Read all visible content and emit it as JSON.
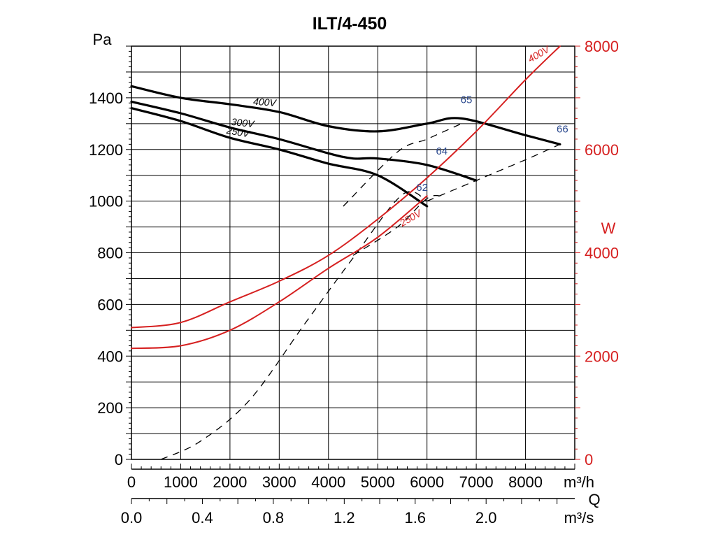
{
  "chart_data": {
    "type": "line",
    "title": "ILT/4-450",
    "y_unit_left": "Pa",
    "y_unit_right": "W",
    "x_unit_primary": "m³/h",
    "x_unit_secondary": "m³/s",
    "x_secondary_name": "Q",
    "xlim": [
      0,
      9000
    ],
    "ylim_left": [
      0,
      1600
    ],
    "ylim_right": [
      0,
      8000
    ],
    "x_ticks": [
      "0",
      "1000",
      "2000",
      "3000",
      "4000",
      "5000",
      "6000",
      "7000",
      "8000"
    ],
    "x_ticks_secondary": [
      "0.0",
      "0.4",
      "0.8",
      "1.2",
      "1.6",
      "2.0"
    ],
    "y_ticks_left": [
      "0",
      "200",
      "400",
      "600",
      "800",
      "1000",
      "1200",
      "1400"
    ],
    "y_ticks_right": [
      "0",
      "2000",
      "4000",
      "6000",
      "8000"
    ],
    "grid": true,
    "pressure_series": [
      {
        "name": "400V",
        "x": [
          0,
          1000,
          2000,
          3000,
          4000,
          5000,
          6000,
          6700,
          8000,
          8700
        ],
        "y": [
          1445,
          1400,
          1375,
          1345,
          1290,
          1270,
          1300,
          1320,
          1255,
          1220
        ]
      },
      {
        "name": "300V",
        "x": [
          0,
          1000,
          2000,
          3000,
          4000,
          4500,
          5000,
          6000,
          7000
        ],
        "y": [
          1385,
          1340,
          1285,
          1240,
          1185,
          1165,
          1165,
          1140,
          1080
        ]
      },
      {
        "name": "250V",
        "x": [
          0,
          1000,
          2000,
          3000,
          4000,
          5000,
          6000
        ],
        "y": [
          1360,
          1310,
          1245,
          1200,
          1145,
          1100,
          980
        ]
      }
    ],
    "power_series": [
      {
        "name": "400V",
        "x": [
          0,
          1000,
          2000,
          3000,
          4000,
          5000,
          6000,
          7000,
          8000,
          8700
        ],
        "y": [
          2550,
          2650,
          3050,
          3450,
          3950,
          4650,
          5450,
          6350,
          7350,
          8000
        ]
      },
      {
        "name": "250V",
        "x": [
          0,
          1000,
          2000,
          3000,
          4000,
          5000,
          6000
        ],
        "y": [
          2150,
          2200,
          2500,
          3050,
          3700,
          4300,
          5100
        ]
      }
    ],
    "efficiency_lines": [
      {
        "label": "62",
        "x": [
          600,
          1400,
          2400,
          3500,
          4500,
          5500,
          6000
        ],
        "y": [
          0,
          70,
          230,
          520,
          780,
          1025,
          1000
        ]
      },
      {
        "label": "64",
        "x": [
          4500,
          5400,
          6000,
          6300
        ],
        "y": [
          790,
          900,
          1010,
          1020
        ]
      },
      {
        "label": "65",
        "x": [
          4300,
          5400,
          6000,
          6700
        ],
        "y": [
          980,
          1190,
          1240,
          1300
        ]
      },
      {
        "label": "66",
        "x": [
          6000,
          7000,
          8000,
          8700
        ],
        "y": [
          1000,
          1080,
          1160,
          1220
        ]
      }
    ],
    "efficiency_labels": [
      "62",
      "64",
      "65",
      "66"
    ],
    "colors": {
      "pressure": "#000000",
      "power": "#d62020",
      "efficiency_label": "#2c4a8f",
      "grid": "#000000",
      "dashed": "#000000"
    }
  }
}
